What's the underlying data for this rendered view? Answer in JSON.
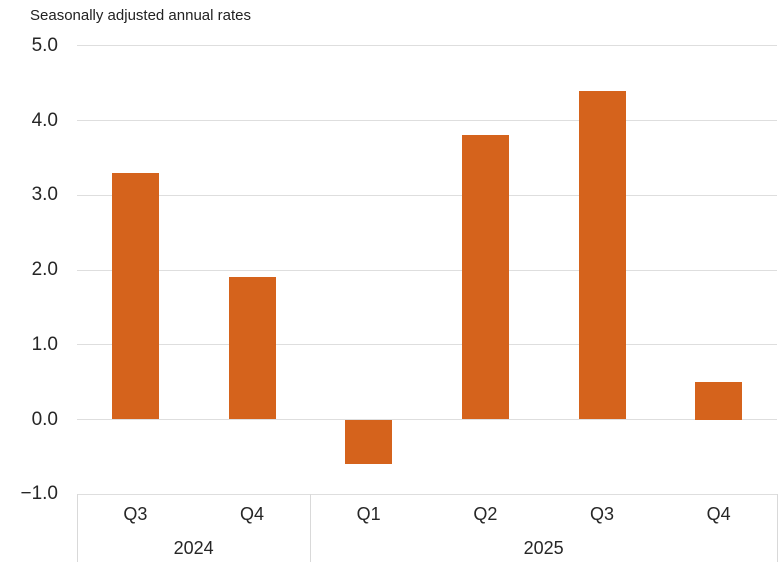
{
  "title": "Seasonally adjusted annual rates",
  "colors": {
    "bar": "#d5631c",
    "grid": "#dedede",
    "axis_line": "#d9d9d9",
    "text": "#262626",
    "background": "#ffffff"
  },
  "chart_data": {
    "type": "bar",
    "title": "Seasonally adjusted annual rates",
    "categories": [
      "Q3",
      "Q4",
      "Q1",
      "Q2",
      "Q3",
      "Q4"
    ],
    "year_groups": [
      {
        "label": "2024",
        "span": 2
      },
      {
        "label": "2025",
        "span": 4
      }
    ],
    "values": [
      3.3,
      1.9,
      -0.6,
      3.8,
      4.4,
      0.5
    ],
    "xlabel": "",
    "ylabel": "",
    "ylim": [
      -1.0,
      5.0
    ],
    "ytick_labels": [
      "5.0",
      "4.0",
      "3.0",
      "2.0",
      "1.0",
      "0.0",
      "−1.0"
    ],
    "ytick_values": [
      5,
      4,
      3,
      2,
      1,
      0,
      -1
    ],
    "grid": true,
    "legend": "none",
    "bar_color": "#d5631c"
  }
}
